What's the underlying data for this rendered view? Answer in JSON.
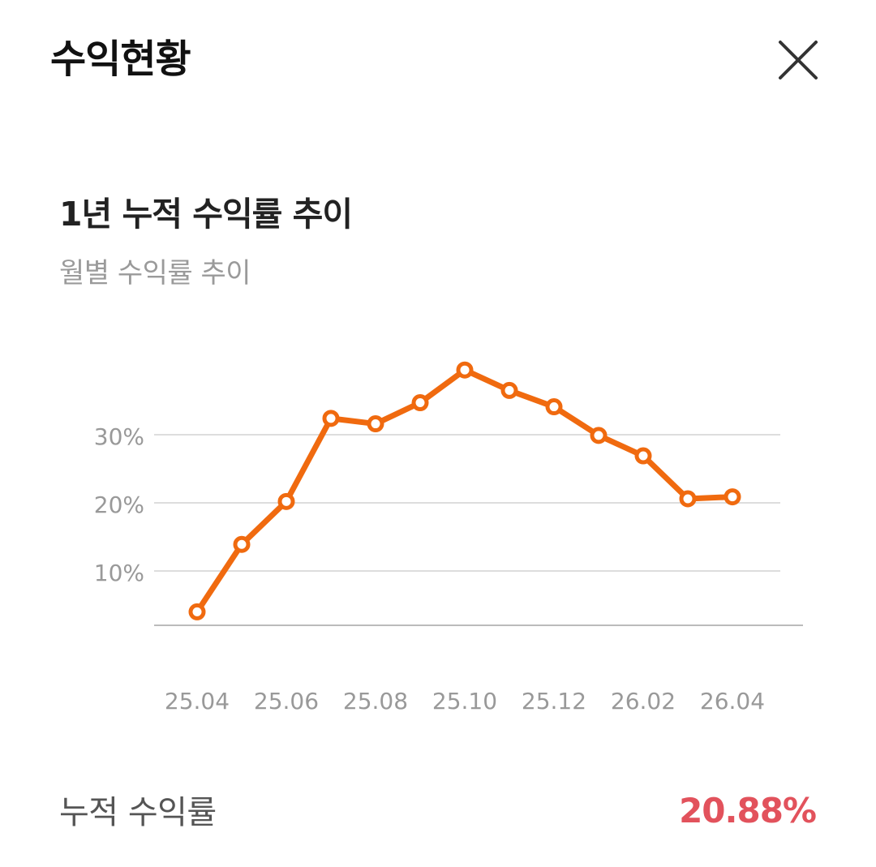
{
  "header": {
    "title": "수익현황",
    "close_icon": "close-icon"
  },
  "section": {
    "title": "1년 누적 수익률 추이",
    "subtitle": "월별 수익률 추이"
  },
  "summary": {
    "label": "누적 수익률",
    "value": "20.88%",
    "value_color": "#e2525c"
  },
  "colors": {
    "line": "#f06a0f",
    "marker_fill": "#ffffff",
    "grid": "#dddddd",
    "axis": "#bbbbbb",
    "tick_text": "#999999"
  },
  "chart_data": {
    "type": "line",
    "x": [
      "25.04",
      "25.05",
      "25.06",
      "25.07",
      "25.08",
      "25.09",
      "25.10",
      "25.11",
      "25.12",
      "26.01",
      "26.02",
      "26.03",
      "26.04"
    ],
    "series": [
      {
        "values": [
          4.0,
          13.9,
          20.2,
          32.4,
          31.6,
          34.7,
          39.5,
          36.5,
          34.1,
          29.9,
          26.9,
          20.6,
          20.88
        ]
      }
    ],
    "x_tick_labels": [
      "25.04",
      "25.06",
      "25.08",
      "25.10",
      "25.12",
      "26.02",
      "26.04"
    ],
    "y_ticks": [
      10,
      20,
      30
    ],
    "y_tick_labels": [
      "10%",
      "20%",
      "30%"
    ],
    "ylim": [
      2,
      45
    ],
    "grid": true,
    "title": "",
    "xlabel": "",
    "ylabel": ""
  }
}
